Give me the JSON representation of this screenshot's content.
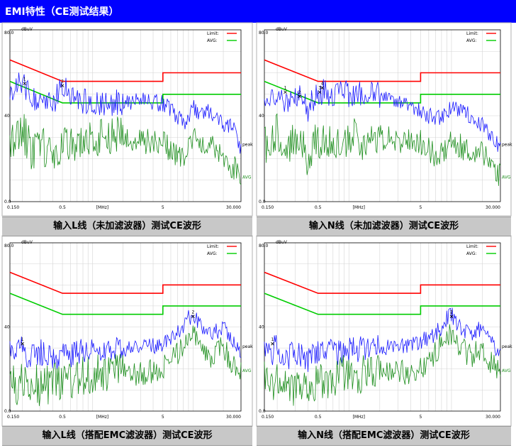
{
  "header": {
    "title": "EMI特性（CE测试结果）"
  },
  "colors": {
    "header_bg": "#0000ff",
    "limit": "#ff0000",
    "avg_limit": "#00cc00",
    "peak_trace": "#1a1aff",
    "avg_trace": "#1f8f1f",
    "caption_bg": "#c8c8c8"
  },
  "captions": [
    "输入L线（未加滤波器）测试CE波形",
    "输入N线（未加滤波器）测试CE波形",
    "输入L线（搭配EMC滤波器）测试CE波形",
    "输入N线（搭配EMC滤波器）测试CE波形"
  ],
  "axis_text": {
    "y_unit": "dBuV",
    "x_unit": "[MHz]",
    "y_ticks": [
      {
        "value": 80,
        "label": "80.0"
      },
      {
        "value": 40,
        "label": "40"
      },
      {
        "value": 0,
        "label": "0.0"
      }
    ],
    "x_ticks": [
      {
        "value": 0.15,
        "label": "0.150"
      },
      {
        "value": 0.5,
        "label": "0.5"
      },
      {
        "value": 5,
        "label": "5"
      },
      {
        "value": 30,
        "label": "30.000"
      }
    ],
    "legend": [
      "Limit:",
      "AVG:"
    ],
    "trace_labels": [
      "peak",
      "AVG"
    ]
  },
  "chart_data": [
    {
      "type": "line",
      "title": "输入L线（未加滤波器）测试CE波形",
      "x_scale": "log",
      "xlim": [
        0.15,
        30
      ],
      "ylim": [
        0,
        80
      ],
      "ylabel": "dBuV",
      "xlabel": "[MHz]",
      "series": [
        {
          "name": "Limit",
          "color": "#ff0000",
          "x": [
            0.15,
            0.5,
            5,
            5,
            30
          ],
          "y": [
            66,
            56,
            56,
            60,
            60
          ]
        },
        {
          "name": "AVG",
          "color": "#00cc00",
          "x": [
            0.15,
            0.5,
            5,
            5,
            30
          ],
          "y": [
            56,
            46,
            46,
            50,
            50
          ]
        },
        {
          "name": "peak",
          "color": "#1a1aff",
          "x": [
            0.15,
            0.2,
            0.25,
            0.3,
            0.4,
            0.5,
            0.6,
            0.8,
            1,
            1.5,
            2,
            3,
            4,
            5,
            6,
            7,
            8,
            10,
            12,
            15,
            20,
            25,
            30
          ],
          "y": [
            52,
            56,
            46,
            50,
            44,
            54,
            48,
            47,
            46,
            46,
            46,
            47,
            46,
            46,
            43,
            40,
            36,
            44,
            40,
            42,
            36,
            34,
            24
          ]
        },
        {
          "name": "AVG",
          "color": "#1f8f1f",
          "x": [
            0.15,
            0.2,
            0.25,
            0.3,
            0.4,
            0.5,
            0.6,
            0.8,
            1,
            1.5,
            2,
            3,
            4,
            5,
            6,
            7,
            8,
            10,
            12,
            15,
            20,
            25,
            30
          ],
          "y": [
            26,
            34,
            22,
            30,
            18,
            30,
            24,
            30,
            28,
            30,
            30,
            28,
            28,
            28,
            24,
            22,
            20,
            30,
            24,
            26,
            20,
            16,
            12
          ]
        }
      ],
      "markers": [
        {
          "label": "1",
          "x": 0.21,
          "y": 55
        },
        {
          "label": "2",
          "x": 0.5,
          "y": 54
        }
      ]
    },
    {
      "type": "line",
      "title": "输入N线（未加滤波器）测试CE波形",
      "x_scale": "log",
      "xlim": [
        0.15,
        30
      ],
      "ylim": [
        0,
        80
      ],
      "ylabel": "dBuV",
      "xlabel": "[MHz]",
      "series": [
        {
          "name": "Limit",
          "color": "#ff0000",
          "x": [
            0.15,
            0.5,
            5,
            5,
            30
          ],
          "y": [
            66,
            56,
            56,
            60,
            60
          ]
        },
        {
          "name": "AVG",
          "color": "#00cc00",
          "x": [
            0.15,
            0.5,
            5,
            5,
            30
          ],
          "y": [
            56,
            46,
            46,
            50,
            50
          ]
        },
        {
          "name": "peak",
          "color": "#1a1aff",
          "x": [
            0.15,
            0.2,
            0.25,
            0.3,
            0.4,
            0.5,
            0.6,
            0.8,
            1,
            1.5,
            2,
            3,
            4,
            5,
            6,
            7,
            8,
            10,
            12,
            15,
            20,
            25,
            30
          ],
          "y": [
            46,
            50,
            44,
            52,
            42,
            52,
            50,
            50,
            50,
            50,
            50,
            46,
            44,
            42,
            40,
            38,
            40,
            44,
            42,
            40,
            36,
            30,
            24
          ]
        },
        {
          "name": "AVG",
          "color": "#1f8f1f",
          "x": [
            0.15,
            0.2,
            0.25,
            0.3,
            0.4,
            0.5,
            0.6,
            0.8,
            1,
            1.5,
            2,
            3,
            4,
            5,
            6,
            7,
            8,
            10,
            12,
            15,
            20,
            25,
            30
          ],
          "y": [
            26,
            34,
            22,
            32,
            20,
            30,
            26,
            30,
            30,
            28,
            30,
            28,
            28,
            28,
            24,
            22,
            22,
            30,
            26,
            24,
            22,
            16,
            12
          ]
        }
      ],
      "markers": [
        {
          "label": "1",
          "x": 0.24,
          "y": 51
        },
        {
          "label": "2",
          "x": 0.33,
          "y": 49
        },
        {
          "label": "3",
          "x": 0.52,
          "y": 51
        },
        {
          "label": "4",
          "x": 0.55,
          "y": 53
        }
      ]
    },
    {
      "type": "line",
      "title": "输入L线（搭配EMC滤波器）测试CE波形",
      "x_scale": "log",
      "xlim": [
        0.15,
        30
      ],
      "ylim": [
        0,
        80
      ],
      "ylabel": "dBuV",
      "xlabel": "[MHz]",
      "series": [
        {
          "name": "Limit",
          "color": "#ff0000",
          "x": [
            0.15,
            0.5,
            5,
            5,
            30
          ],
          "y": [
            66,
            56,
            56,
            60,
            60
          ]
        },
        {
          "name": "AVG",
          "color": "#00cc00",
          "x": [
            0.15,
            0.5,
            5,
            5,
            30
          ],
          "y": [
            56,
            46,
            46,
            50,
            50
          ]
        },
        {
          "name": "peak",
          "color": "#1a1aff",
          "x": [
            0.15,
            0.18,
            0.2,
            0.23,
            0.25,
            0.3,
            0.4,
            0.5,
            0.7,
            1,
            1.5,
            2,
            3,
            4,
            5,
            6,
            7,
            8,
            9,
            10,
            12,
            15,
            20,
            25,
            30
          ],
          "y": [
            32,
            28,
            34,
            22,
            26,
            28,
            24,
            26,
            28,
            29,
            30,
            29,
            30,
            31,
            32,
            34,
            37,
            40,
            44,
            46,
            40,
            36,
            40,
            32,
            28
          ]
        },
        {
          "name": "AVG",
          "color": "#1f8f1f",
          "x": [
            0.15,
            0.18,
            0.2,
            0.23,
            0.25,
            0.3,
            0.4,
            0.5,
            0.7,
            1,
            1.5,
            2,
            3,
            4,
            5,
            6,
            7,
            8,
            9,
            10,
            12,
            15,
            20,
            25,
            30
          ],
          "y": [
            14,
            12,
            16,
            8,
            16,
            10,
            14,
            12,
            16,
            18,
            18,
            18,
            18,
            19,
            20,
            24,
            28,
            32,
            36,
            36,
            32,
            26,
            30,
            22,
            20
          ]
        }
      ],
      "markers": [
        {
          "label": "1",
          "x": 0.2,
          "y": 32
        },
        {
          "label": "2",
          "x": 10,
          "y": 45
        }
      ]
    },
    {
      "type": "line",
      "title": "输入N线（搭配EMC滤波器）测试CE波形",
      "x_scale": "log",
      "xlim": [
        0.15,
        30
      ],
      "ylim": [
        0,
        80
      ],
      "ylabel": "dBuV",
      "xlabel": "[MHz]",
      "series": [
        {
          "name": "Limit",
          "color": "#ff0000",
          "x": [
            0.15,
            0.5,
            5,
            5,
            30
          ],
          "y": [
            66,
            56,
            56,
            60,
            60
          ]
        },
        {
          "name": "AVG",
          "color": "#00cc00",
          "x": [
            0.15,
            0.5,
            5,
            5,
            30
          ],
          "y": [
            56,
            46,
            46,
            50,
            50
          ]
        },
        {
          "name": "peak",
          "color": "#1a1aff",
          "x": [
            0.15,
            0.18,
            0.2,
            0.23,
            0.25,
            0.3,
            0.4,
            0.5,
            0.7,
            1,
            1.5,
            2,
            3,
            4,
            5,
            6,
            7,
            8,
            9,
            10,
            12,
            15,
            20,
            25,
            30
          ],
          "y": [
            30,
            28,
            32,
            22,
            26,
            27,
            25,
            27,
            28,
            29,
            30,
            30,
            31,
            32,
            33,
            35,
            37,
            40,
            44,
            46,
            40,
            36,
            40,
            32,
            28
          ]
        },
        {
          "name": "AVG",
          "color": "#1f8f1f",
          "x": [
            0.15,
            0.18,
            0.2,
            0.23,
            0.25,
            0.3,
            0.4,
            0.5,
            0.7,
            1,
            1.5,
            2,
            3,
            4,
            5,
            6,
            7,
            8,
            9,
            10,
            12,
            15,
            20,
            25,
            30
          ],
          "y": [
            14,
            12,
            16,
            8,
            16,
            10,
            14,
            12,
            16,
            18,
            18,
            18,
            18,
            19,
            20,
            24,
            28,
            32,
            36,
            36,
            32,
            26,
            30,
            22,
            20
          ]
        }
      ],
      "markers": [
        {
          "label": "1",
          "x": 0.18,
          "y": 32
        },
        {
          "label": "2",
          "x": 10,
          "y": 45
        }
      ]
    }
  ]
}
